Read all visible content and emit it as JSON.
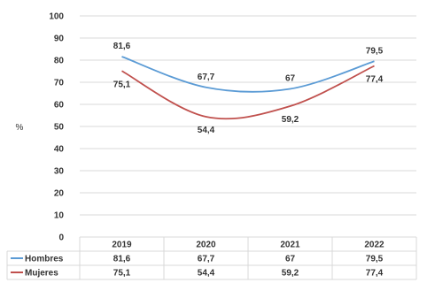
{
  "chart_data": {
    "type": "line",
    "ylabel": "%",
    "xlabel": "",
    "ylim": [
      0,
      100
    ],
    "yticks": [
      0,
      10,
      20,
      30,
      40,
      50,
      60,
      70,
      80,
      90,
      100
    ],
    "categories": [
      "2019",
      "2020",
      "2021",
      "2022"
    ],
    "series": [
      {
        "name": "Hombres",
        "values": [
          81.6,
          67.7,
          67,
          79.5
        ],
        "labels": [
          "81,6",
          "67,7",
          "67",
          "79,5"
        ],
        "color": "#5b9bd5"
      },
      {
        "name": "Mujeres",
        "values": [
          75.1,
          54.4,
          59.2,
          77.4
        ],
        "labels": [
          "75,1",
          "54,4",
          "59,2",
          "77,4"
        ],
        "color": "#c0504d"
      }
    ],
    "grid": true,
    "legend": "data-table-below",
    "data_table": true
  }
}
